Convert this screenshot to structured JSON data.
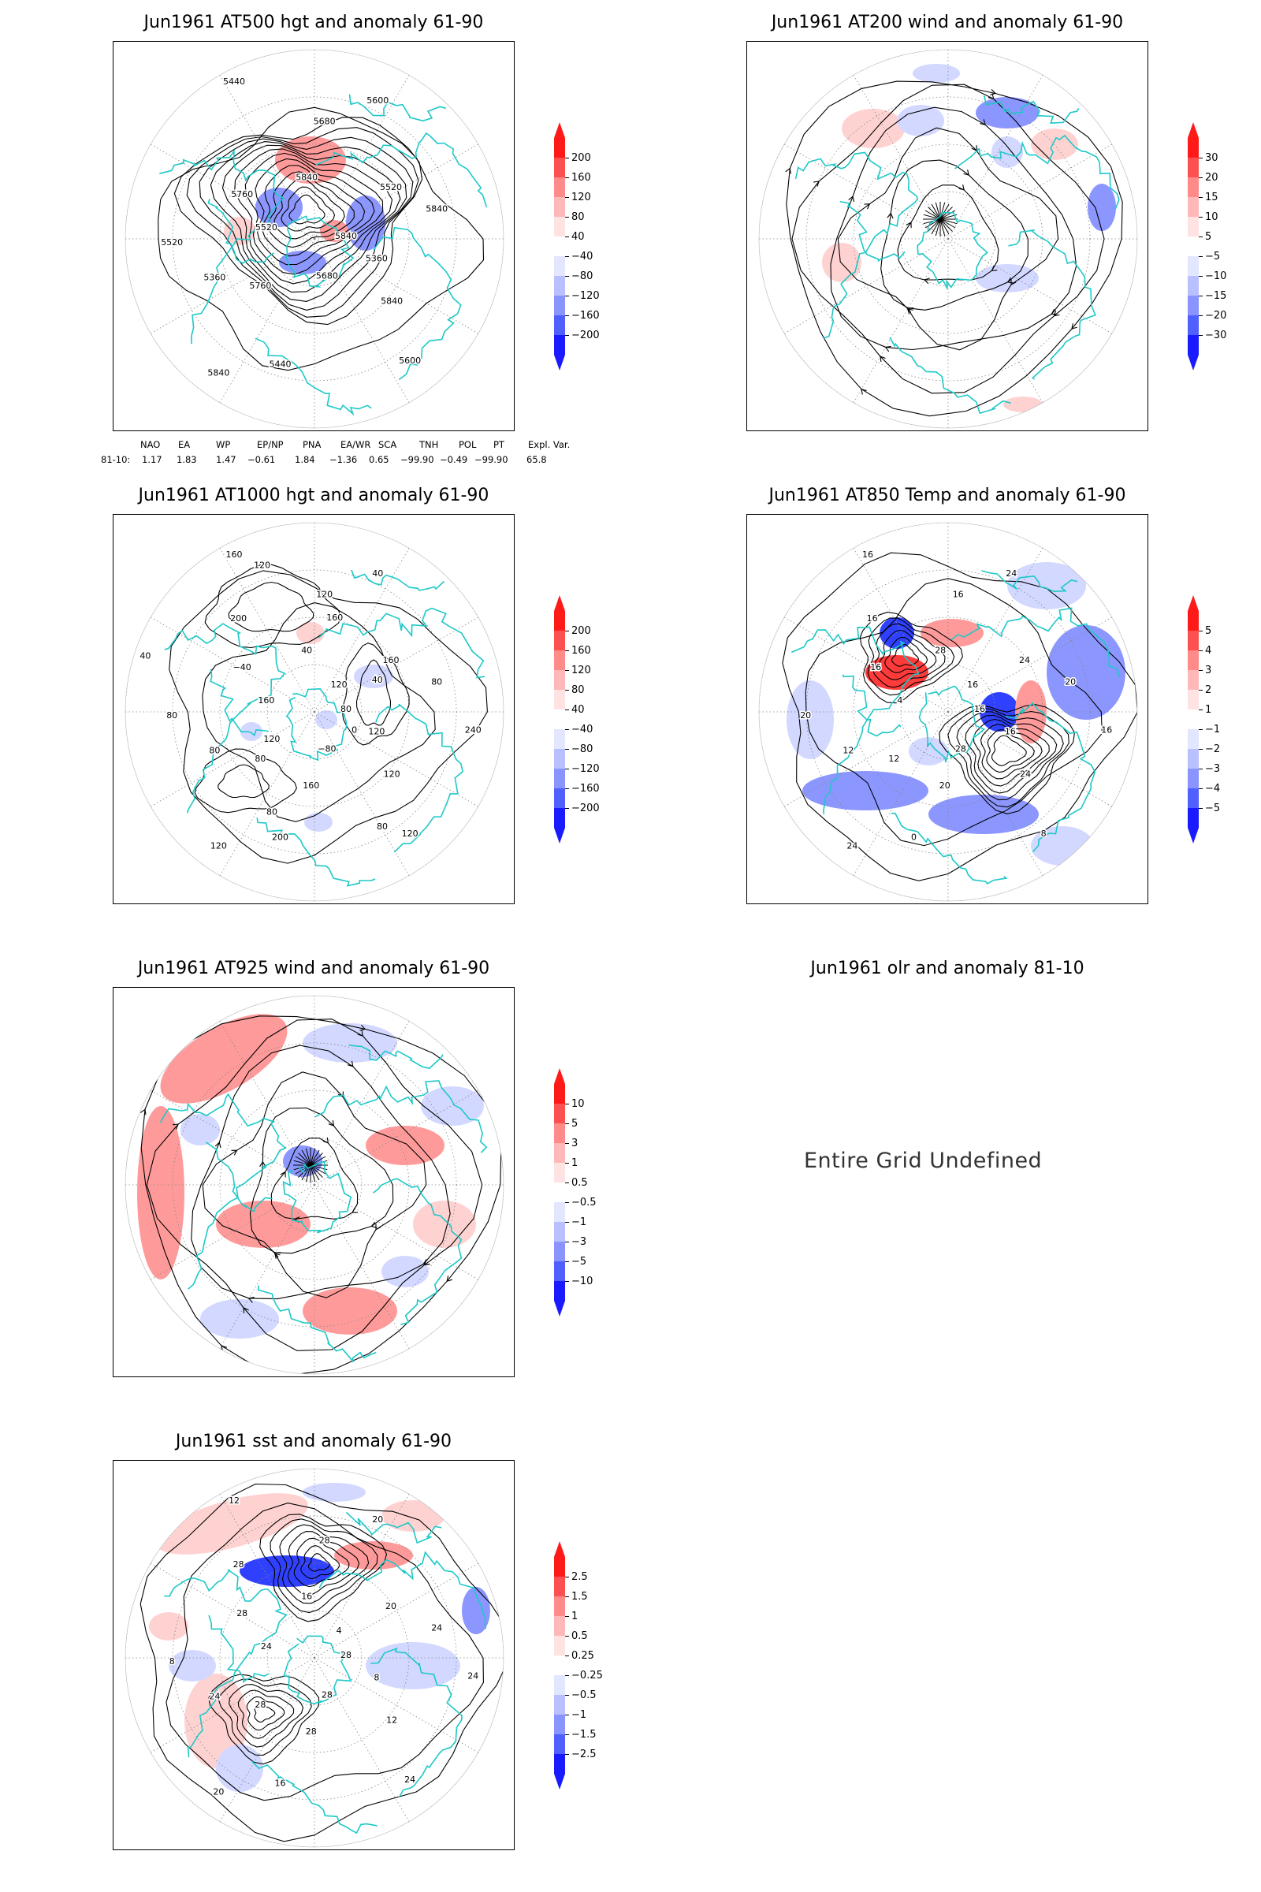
{
  "colors": {
    "anomaly_pos_strong": "#ff1a1a",
    "anomaly_pos_weak": "#ffd6d6",
    "anomaly_neg_weak": "#d6dcff",
    "anomaly_neg_strong": "#1a1aff",
    "coastline": "#1ec8c8",
    "contour": "#000000",
    "grid": "#888888"
  },
  "panels": [
    {
      "id": "at500",
      "title": "Jun1961 AT500 hgt and anomaly 61-90",
      "contour_labels": [
        "5840",
        "5760",
        "5680",
        "5600",
        "5520",
        "5520",
        "5440",
        "5440",
        "5360",
        "5360",
        "5600",
        "5680",
        "5760",
        "5840",
        "5840",
        "5840",
        "5840",
        "5520"
      ],
      "colorbar": [
        "200",
        "160",
        "120",
        "80",
        "40",
        "−40",
        "−80",
        "−120",
        "−160",
        "−200"
      ]
    },
    {
      "id": "at200",
      "title": "Jun1961 AT200 wind and anomaly 61-90",
      "colorbar": [
        "30",
        "20",
        "15",
        "10",
        "5",
        "−5",
        "−10",
        "−15",
        "−20",
        "−30"
      ]
    },
    {
      "id": "at1000",
      "title": "Jun1961 AT1000 hgt and anomaly 61-90",
      "contour_labels": [
        "80",
        "80",
        "120",
        "120",
        "160",
        "160",
        "200",
        "160",
        "120",
        "80",
        "40",
        "−80",
        "−40",
        "80",
        "120",
        "40",
        "120",
        "80",
        "120",
        "160",
        "200",
        "240",
        "120",
        "160",
        "80",
        "40",
        "40",
        "80",
        "120",
        "0"
      ],
      "colorbar": [
        "200",
        "160",
        "120",
        "80",
        "40",
        "−40",
        "−80",
        "−120",
        "−160",
        "−200"
      ]
    },
    {
      "id": "at850",
      "title": "Jun1961 AT850 Temp and anomaly 61-90",
      "contour_labels": [
        "16",
        "12",
        "16",
        "8",
        "4",
        "24",
        "0",
        "16",
        "16",
        "12",
        "24",
        "28",
        "16",
        "20",
        "24",
        "28",
        "24",
        "20",
        "16",
        "20",
        "16",
        "16"
      ],
      "colorbar": [
        "5",
        "4",
        "3",
        "2",
        "1",
        "−1",
        "−2",
        "−3",
        "−4",
        "−5"
      ]
    },
    {
      "id": "at925",
      "title": "Jun1961 AT925 wind and anomaly 61-90",
      "colorbar": [
        "10",
        "5",
        "3",
        "1",
        "0.5",
        "−0.5",
        "−1",
        "−3",
        "−5",
        "−10"
      ]
    },
    {
      "id": "olr",
      "title": "Jun1961 olr and anomaly 81-10",
      "message": "Entire Grid Undefined"
    },
    {
      "id": "sst",
      "title": "Jun1961 sst and anomaly 61-90",
      "contour_labels": [
        "28",
        "28",
        "28",
        "24",
        "24",
        "20",
        "16",
        "12",
        "8",
        "24",
        "20",
        "28",
        "28",
        "24",
        "20",
        "16",
        "12",
        "8",
        "4",
        "28",
        "28",
        "24"
      ],
      "colorbar": [
        "2.5",
        "1.5",
        "1",
        "0.5",
        "0.25",
        "−0.25",
        "−0.5",
        "−1",
        "−1.5",
        "−2.5"
      ]
    }
  ],
  "teleconnections": {
    "headers": [
      "NAO",
      "EA",
      "WP",
      "EP/NP",
      "PNA",
      "EA/WR",
      "SCA",
      "TNH",
      "POL",
      "PT",
      "Expl. Var."
    ],
    "row_label": "81-10:",
    "values": [
      "1.17",
      "1.83",
      "1.47",
      "−0.61",
      "1.84",
      "−1.36",
      "0.65",
      "−99.90",
      "−0.49",
      "−99.90",
      "65.8"
    ]
  }
}
